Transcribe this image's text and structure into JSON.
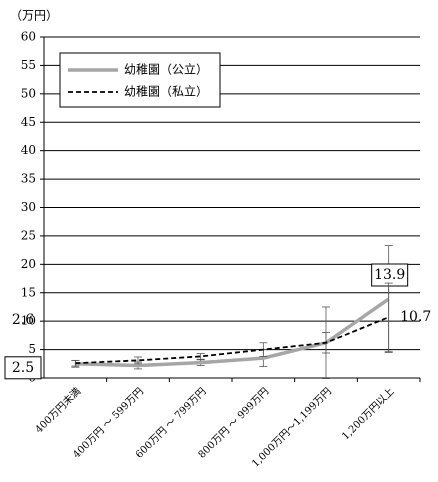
{
  "chart_data": {
    "type": "line",
    "y_label": "（万円）",
    "categories": [
      "400万円未満",
      "400万円 ～ 599万円",
      "600万円 ～ 799万円",
      "800万円 ～ 999万円",
      "1,000万円～1,199万円",
      "1,200万円以上"
    ],
    "series": [
      {
        "name": "幼稚園（公立）",
        "color": "#a6a6a6",
        "dash": false,
        "values": [
          2.5,
          2.2,
          2.7,
          3.5,
          6.2,
          13.9
        ],
        "errors": [
          0.6,
          0.6,
          0.5,
          1.5,
          6.3,
          9.4
        ],
        "value_labels": [
          "2.5",
          null,
          null,
          null,
          null,
          "13.9"
        ]
      },
      {
        "name": "幼稚園（私立）",
        "color": "#000000",
        "dash": true,
        "values": [
          2.6,
          3.1,
          3.8,
          5.0,
          6.2,
          10.7
        ],
        "errors": [
          0.5,
          0.6,
          0.5,
          1.2,
          1.8,
          6.0
        ],
        "value_labels": [
          "2.6",
          null,
          null,
          null,
          null,
          "10.7"
        ]
      }
    ],
    "ylim": [
      0,
      60
    ],
    "yticks": [
      0,
      5,
      10,
      15,
      20,
      25,
      30,
      35,
      40,
      45,
      50,
      55,
      60
    ],
    "grid": true
  }
}
